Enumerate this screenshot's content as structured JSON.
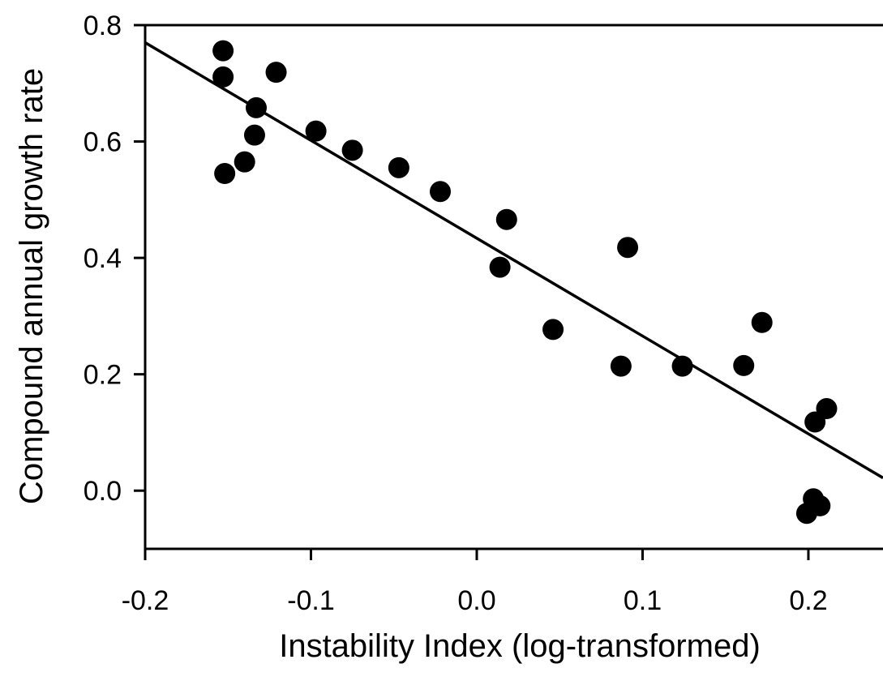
{
  "chart_data": {
    "type": "scatter",
    "xlabel": "Instability Index (log-transformed)",
    "ylabel": "Compound annual growth rate",
    "xlim": [
      -0.2,
      0.245
    ],
    "ylim": [
      -0.1,
      0.8
    ],
    "xticks": [
      "-0.2",
      "-0.1",
      "0.0",
      "0.1",
      "0.2"
    ],
    "yticks": [
      "0.0",
      "0.2",
      "0.4",
      "0.6",
      "0.8"
    ],
    "grid": false,
    "point_color": "#000000",
    "series": [
      {
        "points": [
          [
            -0.153,
            0.756
          ],
          [
            -0.153,
            0.711
          ],
          [
            -0.121,
            0.719
          ],
          [
            -0.133,
            0.658
          ],
          [
            -0.134,
            0.611
          ],
          [
            -0.152,
            0.545
          ],
          [
            -0.14,
            0.565
          ],
          [
            -0.097,
            0.618
          ],
          [
            -0.075,
            0.585
          ],
          [
            -0.047,
            0.555
          ],
          [
            -0.022,
            0.514
          ],
          [
            0.018,
            0.466
          ],
          [
            0.014,
            0.384
          ],
          [
            0.046,
            0.277
          ],
          [
            0.091,
            0.418
          ],
          [
            0.087,
            0.214
          ],
          [
            0.124,
            0.214
          ],
          [
            0.161,
            0.215
          ],
          [
            0.172,
            0.289
          ],
          [
            0.204,
            0.118
          ],
          [
            0.211,
            0.141
          ],
          [
            0.203,
            -0.014
          ],
          [
            0.207,
            -0.026
          ],
          [
            0.199,
            -0.039
          ]
        ]
      }
    ],
    "fit_line": {
      "x": [
        -0.2,
        0.245
      ],
      "y": [
        0.77,
        0.022
      ]
    }
  }
}
